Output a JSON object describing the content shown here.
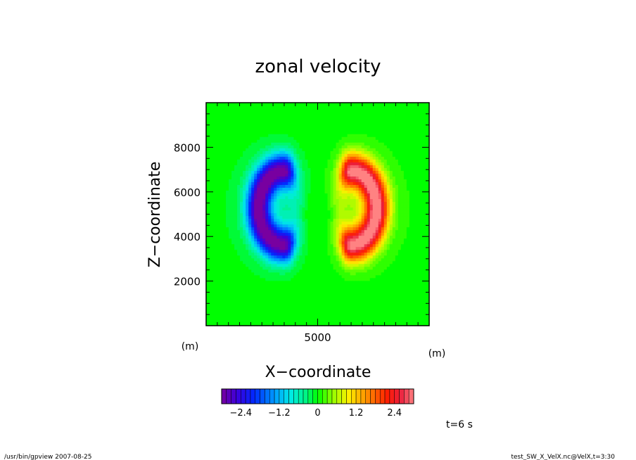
{
  "chart_data": {
    "type": "heatmap",
    "title": "zonal velocity",
    "xlabel": "X−coordinate",
    "ylabel": "Z−coordinate",
    "x_unit": "(m)",
    "y_unit": "(m)",
    "xlim": [
      0,
      10000
    ],
    "ylim": [
      0,
      10000
    ],
    "x_ticks": [
      5000
    ],
    "y_ticks": [
      2000,
      4000,
      6000,
      8000
    ],
    "grid": false,
    "field": {
      "description_values": "zonal velocity anomaly pair",
      "negative_lobe": {
        "center_x": 2600,
        "center_z": 5300,
        "peak": -2.8
      },
      "positive_lobe": {
        "center_x": 7400,
        "center_z": 5300,
        "peak": 2.8
      },
      "center_x": 5000
    },
    "colorbar": {
      "min": -3.0,
      "max": 3.0,
      "tick_values": [
        -2.4,
        -1.2,
        0,
        1.2,
        2.4
      ],
      "tick_labels": [
        "−2.4",
        "−1.2",
        "0",
        "1.2",
        "2.4"
      ],
      "levels": 40
    },
    "annotation_time": "t=6 s"
  },
  "footer": {
    "left": "/usr/bin/gpview   2007-08-25",
    "right": "test_SW_X_VelX.nc@VelX,t=3:30"
  }
}
